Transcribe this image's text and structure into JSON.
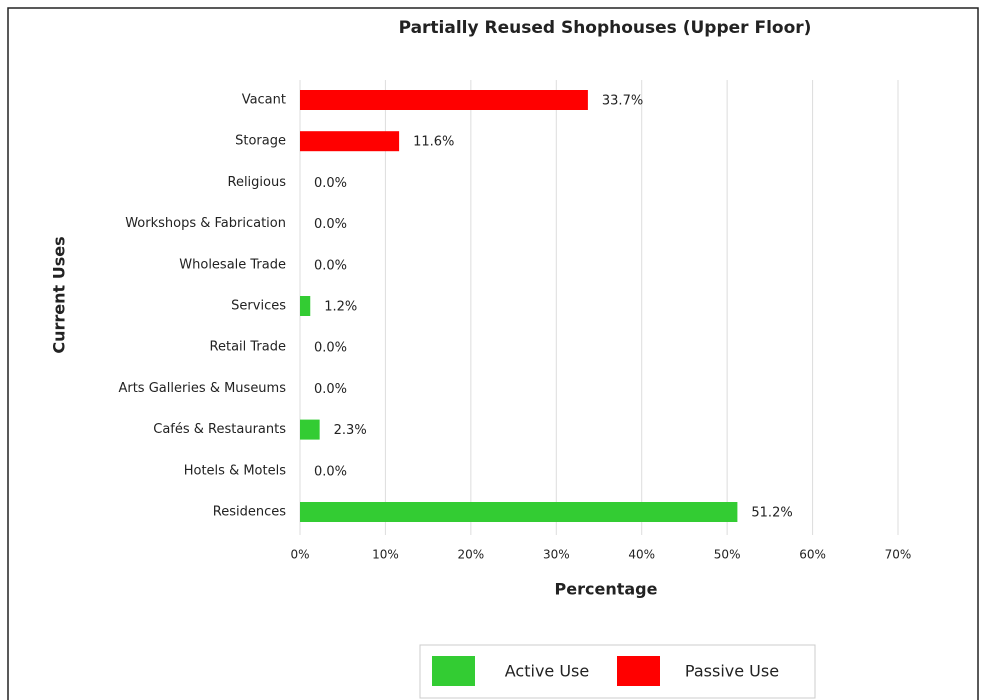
{
  "chart_data": {
    "type": "barh",
    "title": "Partially Reused Shophouses (Upper Floor)",
    "categories": [
      "Vacant",
      "Storage",
      "Religious",
      "Workshops & Fabrication",
      "Wholesale Trade",
      "Services",
      "Retail Trade",
      "Arts Galleries & Museums",
      "Cafés & Restaurants",
      "Hotels & Motels",
      "Residences"
    ],
    "series": [
      {
        "name": "Active Use",
        "color": "#33cc33",
        "values": [
          null,
          null,
          0,
          0,
          0,
          1.2,
          0,
          0,
          2.3,
          0,
          51.2
        ],
        "value_labels": [
          null,
          null,
          "0.0%",
          "0.0%",
          "0.0%",
          "1.2%",
          "0.0%",
          "0.0%",
          "2.3%",
          "0.0%",
          "51.2%"
        ]
      },
      {
        "name": "Passive Use",
        "color": "#ff0000",
        "values": [
          33.7,
          11.6,
          null,
          null,
          null,
          null,
          null,
          null,
          null,
          null,
          null
        ],
        "value_labels": [
          "33.7%",
          "11.6%",
          null,
          null,
          null,
          null,
          null,
          null,
          null,
          null,
          null
        ]
      }
    ],
    "xlabel": "Percentage",
    "ylabel": "Current Uses",
    "xlim": [
      0,
      70
    ],
    "xticks": [
      {
        "value": 0,
        "label": "0%"
      },
      {
        "value": 10,
        "label": "10%"
      },
      {
        "value": 20,
        "label": "20%"
      },
      {
        "value": 30,
        "label": "30%"
      },
      {
        "value": 40,
        "label": "40%"
      },
      {
        "value": 50,
        "label": "50%"
      },
      {
        "value": 60,
        "label": "60%"
      },
      {
        "value": 70,
        "label": "70%"
      }
    ],
    "grid": true,
    "legend": "bottom"
  }
}
